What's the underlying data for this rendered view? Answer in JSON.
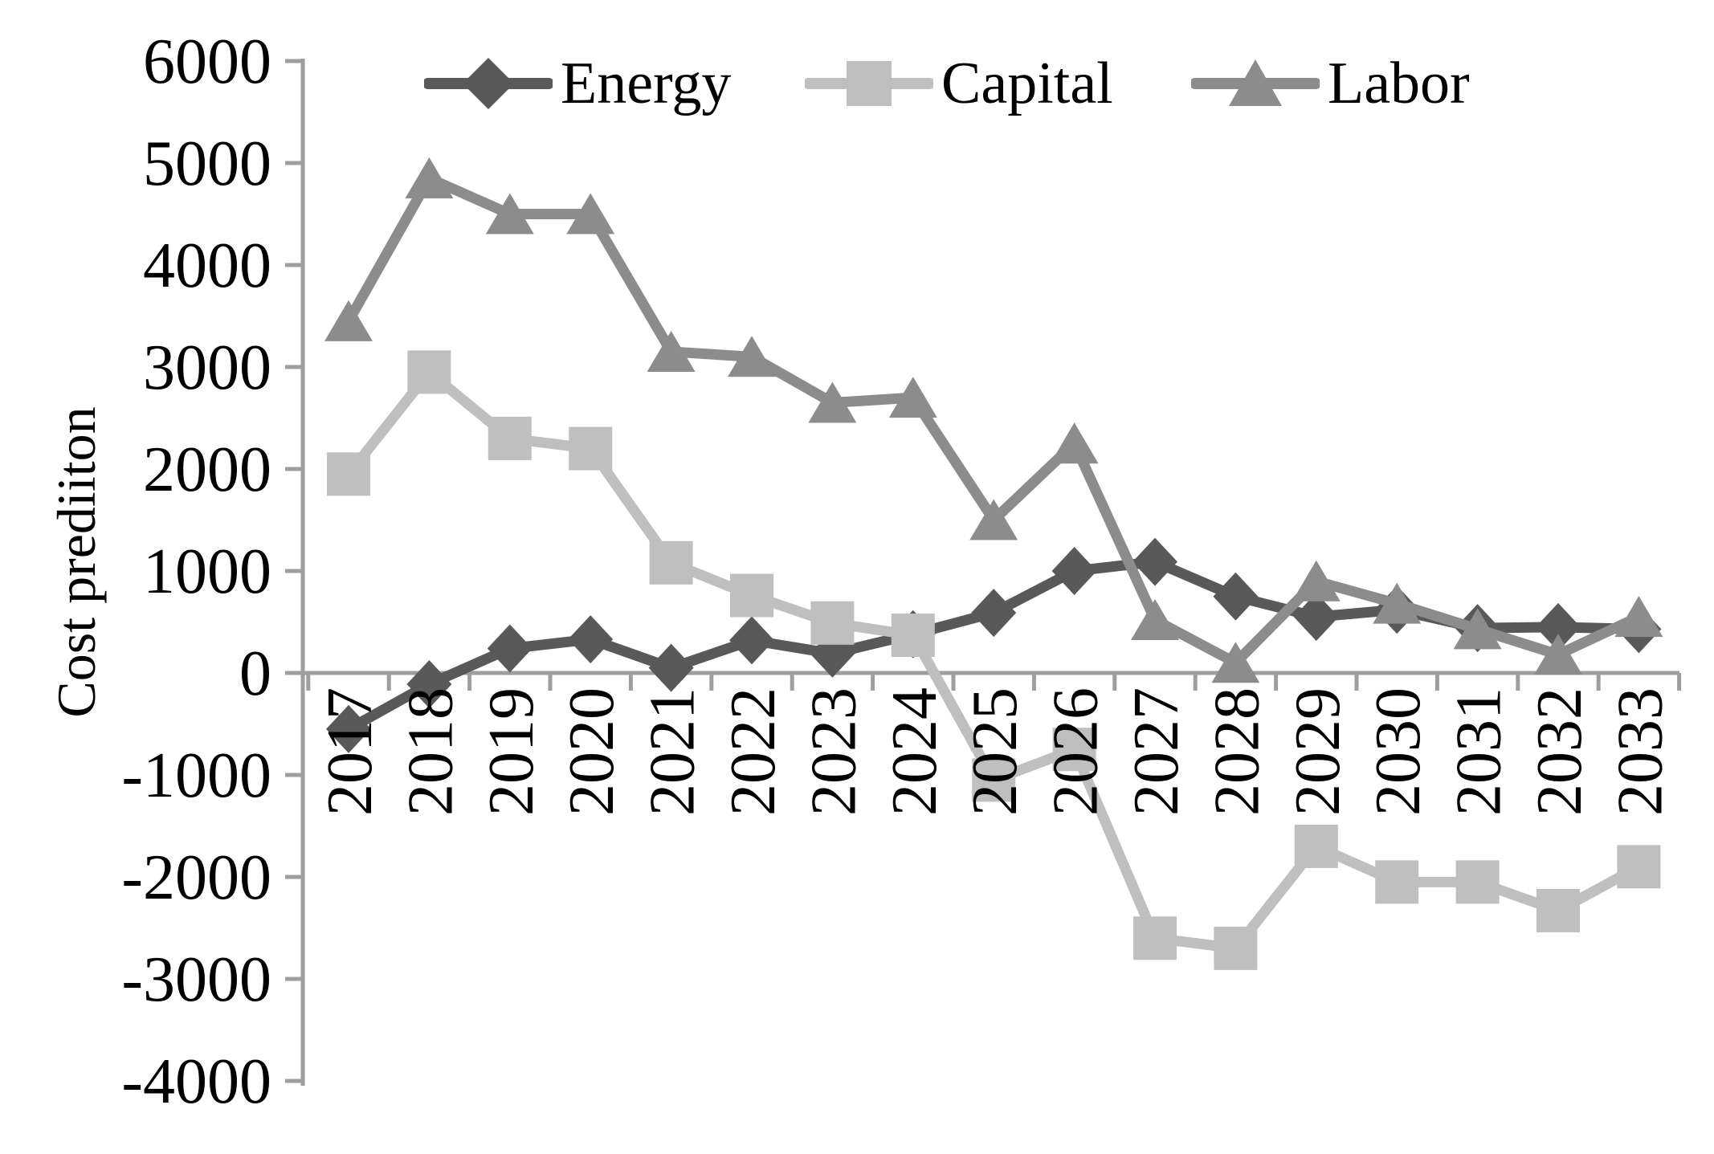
{
  "chart_data": {
    "type": "line",
    "title": "",
    "ylabel": "Cost prediiton",
    "xlabel": "",
    "categories": [
      "2017",
      "2018",
      "2019",
      "2020",
      "2021",
      "2022",
      "2023",
      "2024",
      "2025",
      "2026",
      "2027",
      "2028",
      "2029",
      "2030",
      "2031",
      "2032",
      "2033"
    ],
    "ylim": [
      -4000,
      6000
    ],
    "ytick_step": 1000,
    "y_tick_labels": [
      "6000",
      "5000",
      "4000",
      "3000",
      "2000",
      "1000",
      "0",
      "-1000",
      "-2000",
      "-3000",
      "-4000"
    ],
    "grid": false,
    "legend_position": "top",
    "background": "#ffffff",
    "axis_color": "#9e9e9e",
    "text_color": "#000000",
    "series": [
      {
        "name": "Energy",
        "marker": "diamond",
        "color": "#595959",
        "values": [
          -550,
          -110,
          240,
          330,
          50,
          320,
          190,
          380,
          590,
          1000,
          1090,
          750,
          550,
          620,
          440,
          450,
          430
        ]
      },
      {
        "name": "Capital",
        "marker": "square",
        "color": "#bfbfbf",
        "values": [
          1950,
          2950,
          2300,
          2200,
          1080,
          760,
          490,
          370,
          -1050,
          -750,
          -2600,
          -2700,
          -1700,
          -2050,
          -2050,
          -2330,
          -1900
        ]
      },
      {
        "name": "Labor",
        "marker": "triangle",
        "color": "#8c8c8c",
        "values": [
          3450,
          4850,
          4500,
          4500,
          3150,
          3100,
          2650,
          2700,
          1500,
          2250,
          520,
          100,
          900,
          680,
          430,
          180,
          550
        ]
      }
    ]
  }
}
